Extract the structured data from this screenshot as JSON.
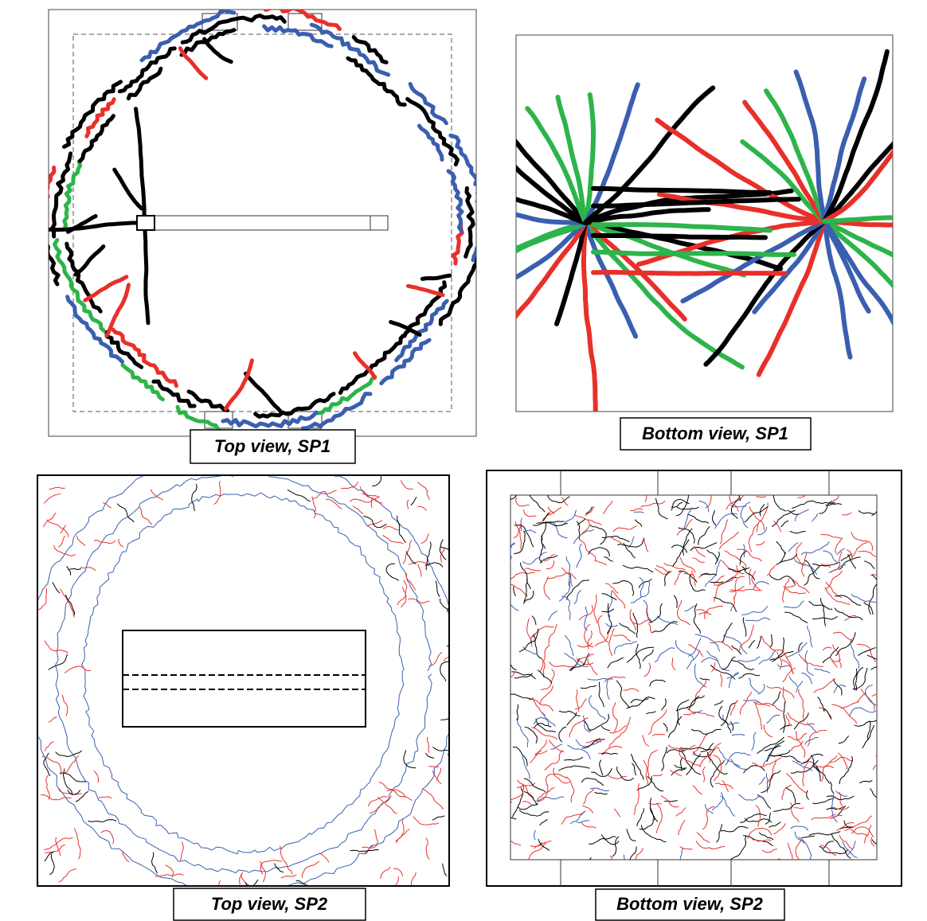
{
  "panels": [
    {
      "caption": "Top view, SP1"
    },
    {
      "caption": "Bottom view, SP1"
    },
    {
      "caption": "Top view, SP2"
    },
    {
      "caption": "Bottom view, SP2"
    }
  ]
}
